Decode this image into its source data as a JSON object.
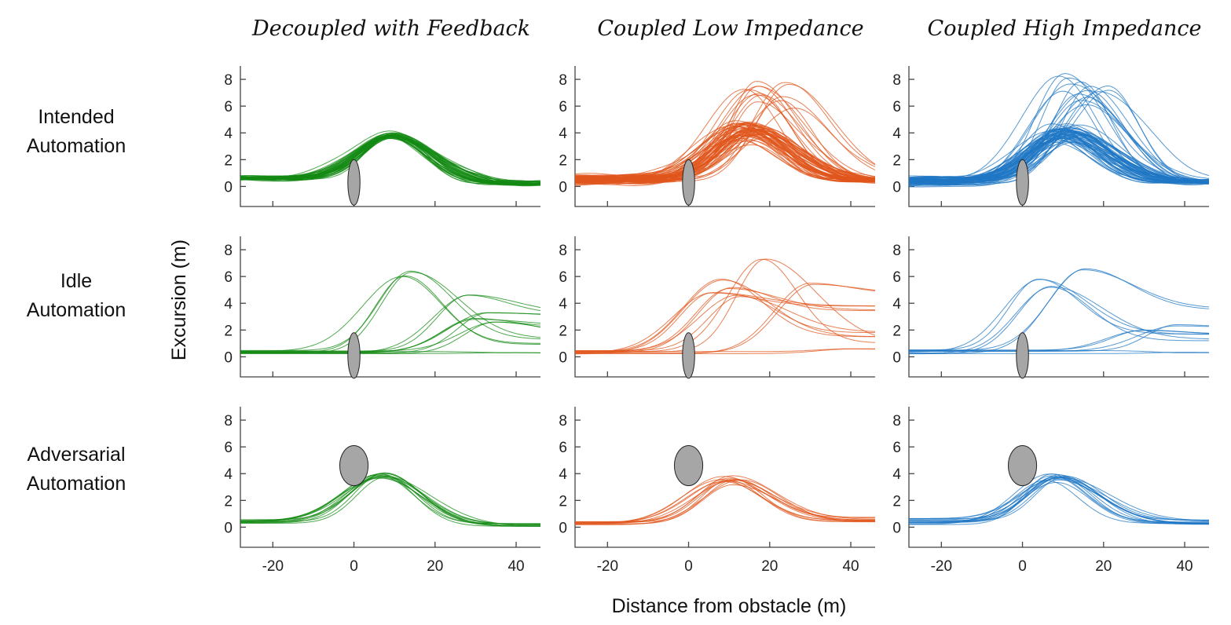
{
  "chart_data": {
    "type": "line",
    "layout": "3x3 small multiples",
    "column_titles": [
      "Decoupled with Feedback",
      "Coupled Low Impedance",
      "Coupled High Impedance"
    ],
    "row_labels": [
      [
        "Intended",
        "Automation"
      ],
      [
        "Idle",
        "Automation"
      ],
      [
        "Adversarial",
        "Automation"
      ]
    ],
    "xlabel": "Distance from obstacle (m)",
    "ylabel": "Excursion (m)",
    "xlim": [
      -28,
      46
    ],
    "ylim": [
      -1.5,
      9
    ],
    "xticks": [
      -20,
      0,
      20,
      40
    ],
    "yticks": [
      0,
      2,
      4,
      6,
      8
    ],
    "colors": [
      "#138a13",
      "#e0561c",
      "#1f77c4"
    ],
    "grid": false,
    "obstacles": {
      "intended": {
        "x": 0,
        "y": 0.3,
        "width_m": 3,
        "height_m": 3.4
      },
      "idle": {
        "x": 0,
        "y": 0.1,
        "width_m": 3,
        "height_m": 3.4
      },
      "adversarial": {
        "x": 0,
        "y": 4.6,
        "width_m": 7,
        "height_m": 3.0
      }
    },
    "panels": [
      {
        "row": 0,
        "col": 0,
        "count": 40,
        "spread": "tight",
        "representative": {
          "baseline": 0.6,
          "peak_x": 9,
          "peak_y": 3.8,
          "end_y": 0.1
        }
      },
      {
        "row": 0,
        "col": 1,
        "count": 70,
        "spread": "wide",
        "representative": {
          "baseline": 0.5,
          "peak_x": 15,
          "peak_y": 4.2,
          "end_y": 0.3
        }
      },
      {
        "row": 0,
        "col": 2,
        "count": 70,
        "spread": "wide",
        "representative": {
          "baseline": 0.4,
          "peak_x": 10,
          "peak_y": 4.0,
          "end_y": 0.2
        }
      },
      {
        "row": 1,
        "col": 0,
        "series": [
          {
            "peak_x": 14,
            "peak_y": 6.4,
            "end_y": 1.3
          },
          {
            "peak_x": 12,
            "peak_y": 6.0,
            "end_y": 1.0
          },
          {
            "peak_x": 28,
            "peak_y": 4.6,
            "end_y": 3.2
          },
          {
            "peak_x": 33,
            "peak_y": 3.3,
            "end_y": 3.0
          },
          {
            "peak_x": 30,
            "peak_y": 2.8,
            "end_y": 2.3
          },
          {
            "peak_x": 35,
            "peak_y": 2.6,
            "end_y": 1.5
          },
          {
            "peak_x": 40,
            "peak_y": 0.3,
            "end_y": 0.3
          }
        ]
      },
      {
        "row": 1,
        "col": 1,
        "series": [
          {
            "peak_x": 19,
            "peak_y": 7.3,
            "end_y": 1.0
          },
          {
            "peak_x": 8,
            "peak_y": 5.8,
            "end_y": 1.5
          },
          {
            "peak_x": 10,
            "peak_y": 5.1,
            "end_y": 3.5
          },
          {
            "peak_x": 30,
            "peak_y": 5.5,
            "end_y": 4.7
          },
          {
            "peak_x": 6,
            "peak_y": 4.8,
            "end_y": 3.8
          },
          {
            "peak_x": 12,
            "peak_y": 4.6,
            "end_y": 1.8
          },
          {
            "peak_x": 40,
            "peak_y": 0.6,
            "end_y": 0.6
          }
        ]
      },
      {
        "row": 1,
        "col": 2,
        "series": [
          {
            "peak_x": 15,
            "peak_y": 6.5,
            "end_y": 3.6
          },
          {
            "peak_x": 4,
            "peak_y": 5.8,
            "end_y": 1.7
          },
          {
            "peak_x": 7,
            "peak_y": 5.2,
            "end_y": 1.2
          },
          {
            "peak_x": 30,
            "peak_y": 2.0,
            "end_y": 1.7
          },
          {
            "peak_x": 38,
            "peak_y": 2.4,
            "end_y": 2.0
          },
          {
            "peak_x": 40,
            "peak_y": 0.3,
            "end_y": 0.3
          }
        ]
      },
      {
        "row": 2,
        "col": 0,
        "count": 12,
        "spread": "tight",
        "representative": {
          "baseline": 0.4,
          "peak_x": 7,
          "peak_y": 3.9,
          "end_y": 0.05
        }
      },
      {
        "row": 2,
        "col": 1,
        "count": 12,
        "spread": "medium",
        "representative": {
          "baseline": 0.3,
          "peak_x": 10,
          "peak_y": 3.6,
          "end_y": 0.4
        }
      },
      {
        "row": 2,
        "col": 2,
        "count": 15,
        "spread": "medium",
        "representative": {
          "baseline": 0.4,
          "peak_x": 8,
          "peak_y": 3.8,
          "end_y": 0.2
        }
      }
    ]
  }
}
